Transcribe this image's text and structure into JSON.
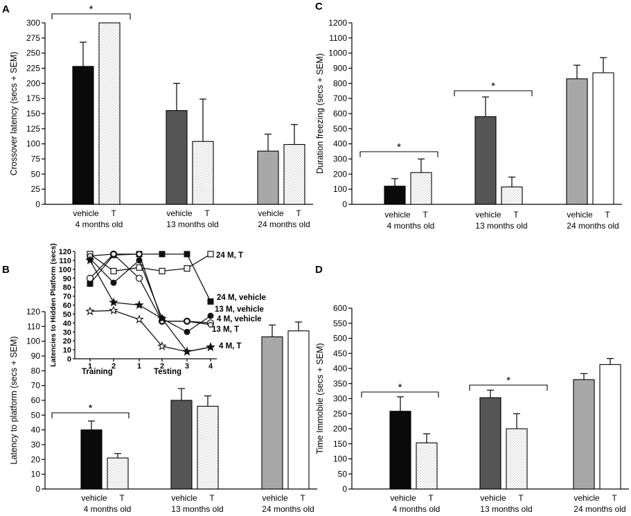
{
  "chart_data": [
    {
      "panel": "A",
      "type": "bar",
      "ylabel": "Crossover latency (secs + SEM)",
      "ylim": [
        0,
        300
      ],
      "yticks": [
        0,
        25,
        50,
        75,
        100,
        125,
        150,
        175,
        200,
        225,
        250,
        275,
        300
      ],
      "groups": [
        {
          "bar_labels": [
            "vehicle",
            "T"
          ],
          "label": "4 months old",
          "values": [
            228,
            300
          ],
          "errors": [
            40,
            0
          ],
          "fills": [
            "black",
            "dotted"
          ]
        },
        {
          "bar_labels": [
            "vehicle",
            "T"
          ],
          "label": "13 months old",
          "values": [
            155,
            104
          ],
          "errors": [
            45,
            70
          ],
          "fills": [
            "darkgray",
            "dotted"
          ]
        },
        {
          "bar_labels": [
            "vehicle",
            "T"
          ],
          "label": "24 months old",
          "values": [
            88,
            99
          ],
          "errors": [
            28,
            33
          ],
          "fills": [
            "lightgray",
            "dotted"
          ]
        }
      ],
      "significance": [
        {
          "group": 0,
          "label": "*"
        }
      ]
    },
    {
      "panel": "B",
      "type": "bar",
      "ylabel": "Latency to platform (secs + SEM)",
      "ylim": [
        0,
        120
      ],
      "yticks": [
        0,
        10,
        20,
        30,
        40,
        50,
        60,
        70,
        80,
        90,
        100,
        110,
        120
      ],
      "groups": [
        {
          "bar_labels": [
            "vehicle",
            "T"
          ],
          "label": "4 months old",
          "values": [
            40,
            21
          ],
          "errors": [
            6,
            3
          ],
          "fills": [
            "black",
            "dotted"
          ]
        },
        {
          "bar_labels": [
            "vehicle",
            "T"
          ],
          "label": "13 months old",
          "values": [
            60,
            56
          ],
          "errors": [
            8,
            7
          ],
          "fills": [
            "darkgray",
            "dotted"
          ]
        },
        {
          "bar_labels": [
            "vehicle",
            "T"
          ],
          "label": "24 months old",
          "values": [
            103,
            107
          ],
          "errors": [
            8,
            6
          ],
          "fills": [
            "lightgray",
            "white"
          ]
        }
      ],
      "significance": [
        {
          "group": 0,
          "label": "*"
        }
      ],
      "inset": {
        "type": "line",
        "ylabel": "Latencies to Hidden Platform (secs)",
        "ylim": [
          0,
          120
        ],
        "yticks": [
          0,
          10,
          20,
          30,
          40,
          50,
          60,
          70,
          80,
          90,
          100,
          110,
          120
        ],
        "x": [
          1,
          2,
          3,
          4,
          5,
          6
        ],
        "xtick_labels": [
          "1",
          "2",
          "1",
          "2",
          "3",
          "4"
        ],
        "phase_labels": [
          "Training",
          "Testing"
        ],
        "series": [
          {
            "name": "24 M, T",
            "marker": "open-square",
            "values": [
              117,
              98,
              102,
              98,
              101,
              117
            ]
          },
          {
            "name": "24 M, vehicle",
            "marker": "filled-square",
            "values": [
              84,
              116,
              117,
              117,
              117,
              64
            ]
          },
          {
            "name": "13 M, vehicle",
            "marker": "filled-circle",
            "values": [
              112,
              85,
              110,
              45,
              30,
              48
            ]
          },
          {
            "name": "4 M, vehicle",
            "marker": "open-circle",
            "values": [
              90,
              117,
              90,
              42,
              42,
              40
            ]
          },
          {
            "name": "13 M, T",
            "marker": "open-circle-small",
            "values": [
              115,
              117,
              117,
              42,
              42,
              38
            ]
          },
          {
            "name": "4 M, T",
            "marker": "open-star",
            "values": [
              53,
              54,
              44,
              14,
              8,
              13
            ]
          },
          {
            "name": "",
            "marker": "filled-star",
            "values": [
              110,
              63,
              60,
              45,
              8,
              13
            ]
          }
        ]
      }
    },
    {
      "panel": "C",
      "type": "bar",
      "ylabel": "Duration freezing (secs + SEM)",
      "ylim": [
        0,
        1200
      ],
      "yticks": [
        0,
        100,
        200,
        300,
        400,
        500,
        600,
        700,
        800,
        900,
        1000,
        1100,
        1200
      ],
      "groups": [
        {
          "bar_labels": [
            "vehicle",
            "T"
          ],
          "label": "4 months old",
          "values": [
            120,
            210
          ],
          "errors": [
            50,
            90
          ],
          "fills": [
            "black",
            "dotted"
          ]
        },
        {
          "bar_labels": [
            "vehicle",
            "T"
          ],
          "label": "13 months old",
          "values": [
            580,
            115
          ],
          "errors": [
            130,
            65
          ],
          "fills": [
            "darkgray",
            "dotted"
          ]
        },
        {
          "bar_labels": [
            "vehicle",
            "T"
          ],
          "label": "24 months old",
          "values": [
            830,
            870
          ],
          "errors": [
            90,
            100
          ],
          "fills": [
            "lightgray",
            "white"
          ]
        }
      ],
      "significance": [
        {
          "group": 0,
          "label": "*"
        },
        {
          "group": 1,
          "label": "*"
        }
      ]
    },
    {
      "panel": "D",
      "type": "bar",
      "ylabel": "Time Immobile (secs + SEM)",
      "ylim": [
        0,
        600
      ],
      "yticks": [
        0,
        50,
        100,
        150,
        200,
        250,
        300,
        350,
        400,
        450,
        500,
        550,
        600
      ],
      "groups": [
        {
          "bar_labels": [
            "vehicle",
            "T"
          ],
          "label": "4 months old",
          "values": [
            258,
            153
          ],
          "errors": [
            48,
            30
          ],
          "fills": [
            "black",
            "dotted"
          ]
        },
        {
          "bar_labels": [
            "vehicle",
            "T"
          ],
          "label": "13 months old",
          "values": [
            303,
            200
          ],
          "errors": [
            25,
            50
          ],
          "fills": [
            "darkgray",
            "dotted"
          ]
        },
        {
          "bar_labels": [
            "vehicle",
            "T"
          ],
          "label": "24 months old",
          "values": [
            363,
            413
          ],
          "errors": [
            20,
            20
          ],
          "fills": [
            "lightgray",
            "white"
          ]
        }
      ],
      "significance": [
        {
          "group": 0,
          "label": "*"
        },
        {
          "group": 1,
          "label": "*"
        }
      ]
    }
  ],
  "colors": {
    "black": "#0a0a0a",
    "darkgray": "#555555",
    "lightgray": "#a8a8a8",
    "white": "#ffffff",
    "dot": "#9a9a9a"
  }
}
